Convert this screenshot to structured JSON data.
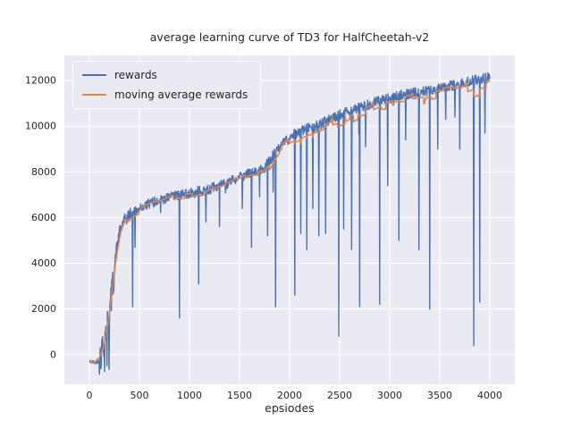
{
  "chart_data": {
    "type": "line",
    "title": "average learning curve of TD3 for HalfCheetah-v2",
    "xlabel": "epsiodes",
    "ylabel": "",
    "plot_bg": "#eaeaf2",
    "grid_color": "#ffffff",
    "text_color": "#262626",
    "xlim": [
      -250,
      4250
    ],
    "ylim": [
      -1300,
      13100
    ],
    "xticks": [
      0,
      500,
      1000,
      1500,
      2000,
      2500,
      3000,
      3500,
      4000
    ],
    "yticks": [
      0,
      2000,
      4000,
      6000,
      8000,
      10000,
      12000
    ],
    "grid": true,
    "legend_position": "upper-left",
    "series": [
      {
        "name": "rewards",
        "color": "#4c72b0"
      },
      {
        "name": "moving average rewards",
        "color": "#dd8452"
      }
    ],
    "trend": [
      [
        0,
        -300
      ],
      [
        60,
        -350
      ],
      [
        100,
        -250
      ],
      [
        140,
        500
      ],
      [
        180,
        1400
      ],
      [
        210,
        2100
      ],
      [
        240,
        3300
      ],
      [
        270,
        4600
      ],
      [
        300,
        5300
      ],
      [
        340,
        5800
      ],
      [
        400,
        6100
      ],
      [
        500,
        6400
      ],
      [
        620,
        6650
      ],
      [
        750,
        6800
      ],
      [
        900,
        7000
      ],
      [
        1050,
        7100
      ],
      [
        1200,
        7250
      ],
      [
        1350,
        7450
      ],
      [
        1500,
        7800
      ],
      [
        1620,
        7950
      ],
      [
        1750,
        8200
      ],
      [
        1850,
        8800
      ],
      [
        1950,
        9300
      ],
      [
        2050,
        9650
      ],
      [
        2150,
        9850
      ],
      [
        2300,
        10050
      ],
      [
        2450,
        10400
      ],
      [
        2550,
        10600
      ],
      [
        2700,
        10800
      ],
      [
        2850,
        11050
      ],
      [
        3000,
        11200
      ],
      [
        3150,
        11400
      ],
      [
        3300,
        11500
      ],
      [
        3450,
        11600
      ],
      [
        3600,
        11750
      ],
      [
        3750,
        11900
      ],
      [
        3900,
        12050
      ],
      [
        4000,
        12150
      ]
    ],
    "spikes": [
      [
        150,
        -750
      ],
      [
        175,
        -500
      ],
      [
        195,
        -650
      ],
      [
        430,
        2100
      ],
      [
        455,
        4700
      ],
      [
        900,
        1600
      ],
      [
        1090,
        3100
      ],
      [
        1300,
        5600
      ],
      [
        1620,
        4700
      ],
      [
        1700,
        6900
      ],
      [
        1780,
        5200
      ],
      [
        1860,
        2100
      ],
      [
        2050,
        2600
      ],
      [
        2110,
        5300
      ],
      [
        2170,
        4600
      ],
      [
        2230,
        6400
      ],
      [
        2290,
        5200
      ],
      [
        2360,
        5300
      ],
      [
        2490,
        800
      ],
      [
        2540,
        5500
      ],
      [
        2620,
        4600
      ],
      [
        2700,
        2100
      ],
      [
        2760,
        9100
      ],
      [
        2900,
        2200
      ],
      [
        2980,
        7400
      ],
      [
        3090,
        5000
      ],
      [
        3160,
        9400
      ],
      [
        3290,
        4600
      ],
      [
        3400,
        2000
      ],
      [
        3480,
        9000
      ],
      [
        3560,
        10300
      ],
      [
        3650,
        10400
      ],
      [
        3700,
        9000
      ],
      [
        3840,
        400
      ],
      [
        3900,
        2300
      ],
      [
        3950,
        9700
      ]
    ],
    "noise_amp": 230
  }
}
